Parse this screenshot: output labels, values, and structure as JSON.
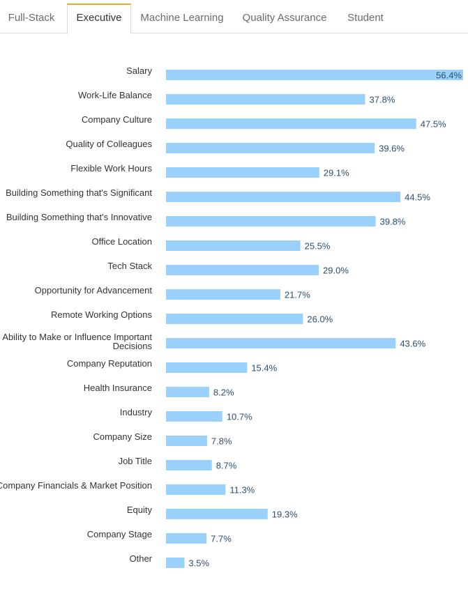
{
  "tabs": [
    {
      "label": "Full-Stack",
      "active": false
    },
    {
      "label": "Executive",
      "active": true
    },
    {
      "label": "Machine Learning",
      "active": false
    },
    {
      "label": "Quality Assurance",
      "active": false
    },
    {
      "label": "Student",
      "active": false
    }
  ],
  "colors": {
    "bar": "#99d1fb",
    "tab_accent": "#f5a623",
    "value_text": "#2d4f6e"
  },
  "chart_data": {
    "type": "bar",
    "orientation": "horizontal",
    "value_suffix": "%",
    "xlim": [
      0,
      56.4
    ],
    "grid": false,
    "categories": [
      "Salary",
      "Work-Life Balance",
      "Company Culture",
      "Quality of Colleagues",
      "Flexible Work Hours",
      "Building Something that's Significant",
      "Building Something that's Innovative",
      "Office Location",
      "Tech Stack",
      "Opportunity for Advancement",
      "Remote Working Options",
      "Ability to Make or Influence Important Decisions",
      "Company Reputation",
      "Health Insurance",
      "Industry",
      "Company Size",
      "Job Title",
      "Company Financials & Market Position",
      "Equity",
      "Company Stage",
      "Other"
    ],
    "values": [
      56.4,
      37.8,
      47.5,
      39.6,
      29.1,
      44.5,
      39.8,
      25.5,
      29.0,
      21.7,
      26.0,
      43.6,
      15.4,
      8.2,
      10.7,
      7.8,
      8.7,
      11.3,
      19.3,
      7.7,
      3.5
    ]
  }
}
